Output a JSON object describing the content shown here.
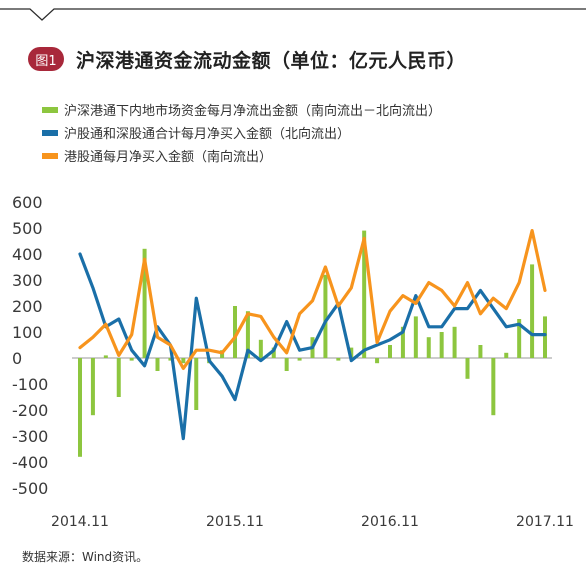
{
  "figure": {
    "badge": "图1",
    "title": "沪深港通资金流动金额（单位：亿元人民币）"
  },
  "legend": [
    {
      "label": "沪深港通下内地市场资金每月净流出金额（南向流出－北向流出）",
      "color": "#8dc63f"
    },
    {
      "label": "沪股通和深股通合计每月净买入金额（北向流出）",
      "color": "#1a6fa8"
    },
    {
      "label": "港股通每月净买入金额（南向流出）",
      "color": "#f7941d"
    }
  ],
  "source": "数据来源：Wind资讯。",
  "chart_data": {
    "type": "bar+line",
    "ylim": [
      -500,
      600
    ],
    "yticks": [
      "600",
      "500",
      "400",
      "300",
      "200",
      "100",
      "0",
      "-100",
      "-200",
      "-300",
      "-400",
      "-500"
    ],
    "ytick_values": [
      600,
      500,
      400,
      300,
      200,
      100,
      0,
      -100,
      -200,
      -300,
      -400,
      -500
    ],
    "xticks": [
      {
        "label": "2014.11",
        "index": 0
      },
      {
        "label": "2015.11",
        "index": 12
      },
      {
        "label": "2016.11",
        "index": 24
      },
      {
        "label": "2017.11",
        "index": 36
      }
    ],
    "periods": 37,
    "series": [
      {
        "name": "沪深港通下内地市场资金每月净流出金额（南向流出－北向流出）",
        "type": "bar",
        "color": "#8dc63f",
        "values": [
          -380,
          -220,
          10,
          -150,
          -10,
          420,
          -50,
          -10,
          -20,
          -200,
          -20,
          30,
          200,
          180,
          70,
          40,
          -50,
          -10,
          80,
          320,
          -10,
          40,
          490,
          -20,
          50,
          120,
          160,
          80,
          100,
          120,
          -80,
          50,
          -220,
          20,
          150,
          360,
          160
        ]
      },
      {
        "name": "沪股通和深股通合计每月净买入金额（北向流出）",
        "type": "line",
        "color": "#1a6fa8",
        "values": [
          400,
          270,
          120,
          150,
          30,
          -30,
          120,
          50,
          -310,
          230,
          -10,
          -70,
          -160,
          30,
          -10,
          30,
          140,
          30,
          40,
          140,
          210,
          -10,
          30,
          50,
          70,
          100,
          240,
          120,
          120,
          190,
          190,
          260,
          190,
          120,
          130,
          90,
          90
        ]
      },
      {
        "name": "港股通每月净买入金额（南向流出）",
        "type": "line",
        "color": "#f7941d",
        "values": [
          40,
          80,
          130,
          10,
          90,
          380,
          80,
          50,
          -40,
          30,
          30,
          20,
          80,
          170,
          160,
          80,
          20,
          170,
          220,
          350,
          200,
          270,
          460,
          60,
          180,
          240,
          210,
          290,
          260,
          200,
          290,
          170,
          230,
          190,
          290,
          490,
          260
        ]
      }
    ]
  }
}
